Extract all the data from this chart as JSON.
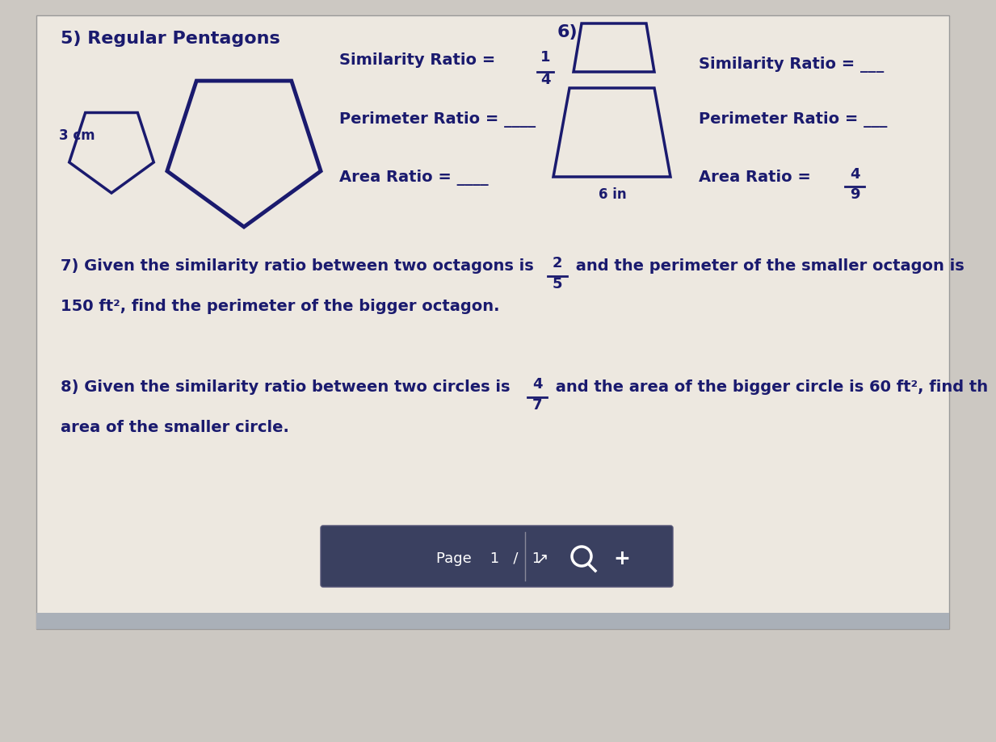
{
  "bg_color": "#ccc8c2",
  "page_bg": "#ede8e0",
  "title5": "5) Regular Pentagons",
  "title6": "6)",
  "label_3cm": "3 cm",
  "label_6in": "6 in",
  "sim_ratio_5_pre": "Similarity Ratio = ",
  "sim_ratio_5_num": "1",
  "sim_ratio_5_den": "4",
  "perim_ratio_5": "Perimeter Ratio = ____",
  "area_ratio_5": "Area Ratio = ____",
  "sim_ratio_6": "Similarity Ratio = ___",
  "perim_ratio_6": "Perimeter Ratio = ___",
  "area_ratio_6_pre": "Area Ratio = ",
  "area_ratio_6_num": "4",
  "area_ratio_6_den": "9",
  "q7_line1": "7) Given the similarity ratio between two octagons is ",
  "q7_frac_num": "2",
  "q7_frac_den": "5",
  "q7_line1b": " and the perimeter of the smaller octagon is",
  "q7_line2": "150 ft², find the perimeter of the bigger octagon.",
  "q8_line1": "8) Given the similarity ratio between two circles is ",
  "q8_frac_num": "4",
  "q8_frac_den": "7",
  "q8_line1b": " and the area of the bigger circle is 60 ft², find th",
  "q8_line2": "area of the smaller circle.",
  "text_color": "#1a1a6e",
  "shape_color": "#1a1a6e",
  "toolbar_bg": "#3a4060",
  "toolbar_text": "Page    1   /   1"
}
